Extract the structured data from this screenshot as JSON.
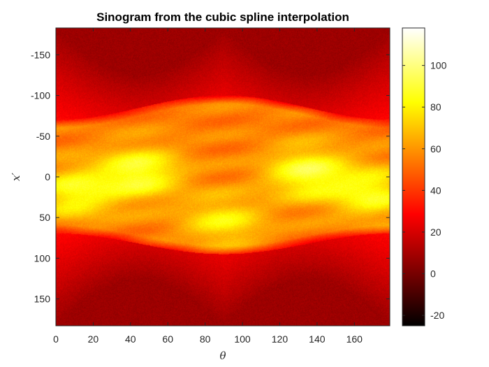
{
  "chart_data": {
    "type": "heatmap",
    "title": "Sinogram from the cubic spline interpolation",
    "xlabel": "θ",
    "ylabel": "x′",
    "x_range": [
      0,
      179
    ],
    "y_range": [
      -183,
      183
    ],
    "y_direction": "reversed",
    "xticks": [
      0,
      20,
      40,
      60,
      80,
      100,
      120,
      140,
      160
    ],
    "yticks": [
      -150,
      -100,
      -50,
      0,
      50,
      100,
      150
    ],
    "colormap": "hot",
    "colorbar": {
      "range": [
        -25,
        118
      ],
      "ticks": [
        -20,
        0,
        20,
        40,
        60,
        80,
        100
      ],
      "location": "right"
    },
    "features": {
      "background_level": 8,
      "edge_bright_level": 30,
      "outer_envelope_half_width_at_0": 126,
      "outer_envelope_half_width_at_90": 126,
      "body_half_width_at_0": 70,
      "body_half_width_at_90": 100,
      "body_level": 55,
      "bright_lobes": [
        {
          "theta": 45,
          "x": -5,
          "level": 90
        },
        {
          "theta": 135,
          "x": -5,
          "level": 90
        },
        {
          "theta": 10,
          "x": 20,
          "level": 85
        },
        {
          "theta": 170,
          "x": 20,
          "level": 85
        },
        {
          "theta": 90,
          "x": 55,
          "level": 80
        }
      ]
    }
  }
}
